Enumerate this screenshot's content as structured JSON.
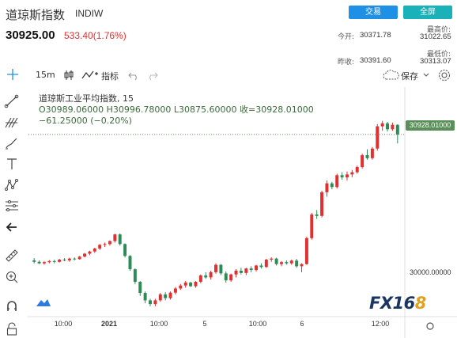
{
  "header": {
    "title": "道琼斯指数",
    "ticker": "INDIW",
    "price": "30925.00",
    "change": "533.40(1.76%)",
    "trade_button": "交易",
    "fullscreen_button": "全屏",
    "open_label": "今开:",
    "open_value": "30371.78",
    "prev_close_label": "昨收:",
    "prev_close_value": "30391.60",
    "high_label": "最高价:",
    "high_value": "31022.65",
    "low_label": "最低价:",
    "low_value": "30313.07"
  },
  "toolbar": {
    "interval": "15m",
    "indicators_label": "指标",
    "save_label": "保存"
  },
  "sidebar": {
    "icons": [
      "crosshair-icon",
      "trend-line-icon",
      "pitchfork-icon",
      "brush-icon",
      "text-icon",
      "pattern-icon",
      "forecast-icon",
      "back-arrow-icon",
      "ruler-icon",
      "zoom-in-icon",
      "magnet-icon",
      "lock-icon"
    ]
  },
  "legend": {
    "name": "道琼斯工业平均指数, 15",
    "ohlc": "O30989.06000  H30996.78000  L30875.60000  收=30928.01000",
    "delta": "−61.25000 (−0.20%)"
  },
  "chart_data": {
    "type": "candlestick",
    "up_color": "#e03030",
    "down_color": "#2e8b57",
    "last_price_tag": "30928.01000",
    "y_tick_labels": [
      "30000.00000"
    ],
    "x_tick_labels": [
      "10:00",
      "2021",
      "10:00",
      "5",
      "10:00",
      "6",
      "12:00"
    ],
    "y_range": [
      29700,
      31250
    ],
    "candles": [
      [
        30080,
        30095,
        30060,
        30070
      ],
      [
        30070,
        30080,
        30055,
        30060
      ],
      [
        30060,
        30075,
        30050,
        30068
      ],
      [
        30068,
        30082,
        30060,
        30075
      ],
      [
        30075,
        30085,
        30060,
        30070
      ],
      [
        30070,
        30090,
        30065,
        30085
      ],
      [
        30085,
        30095,
        30075,
        30080
      ],
      [
        30080,
        30098,
        30070,
        30092
      ],
      [
        30092,
        30100,
        30080,
        30088
      ],
      [
        30088,
        30110,
        30085,
        30105
      ],
      [
        30105,
        30130,
        30100,
        30125
      ],
      [
        30125,
        30145,
        30115,
        30140
      ],
      [
        30140,
        30165,
        30130,
        30160
      ],
      [
        30160,
        30190,
        30150,
        30185
      ],
      [
        30185,
        30200,
        30170,
        30190
      ],
      [
        30190,
        30215,
        30180,
        30210
      ],
      [
        30210,
        30260,
        30200,
        30255
      ],
      [
        30255,
        30262,
        30180,
        30190
      ],
      [
        30190,
        30195,
        30100,
        30110
      ],
      [
        30110,
        30115,
        30010,
        30020
      ],
      [
        30020,
        30025,
        29920,
        29935
      ],
      [
        29935,
        29940,
        29840,
        29860
      ],
      [
        29860,
        29870,
        29790,
        29810
      ],
      [
        29810,
        29820,
        29770,
        29785
      ],
      [
        29785,
        29820,
        29770,
        29810
      ],
      [
        29810,
        29860,
        29800,
        29850
      ],
      [
        29850,
        29865,
        29810,
        29825
      ],
      [
        29825,
        29870,
        29815,
        29862
      ],
      [
        29862,
        29900,
        29850,
        29890
      ],
      [
        29890,
        29920,
        29880,
        29910
      ],
      [
        29910,
        29940,
        29895,
        29930
      ],
      [
        29930,
        29935,
        29900,
        29905
      ],
      [
        29905,
        29940,
        29895,
        29935
      ],
      [
        29935,
        29985,
        29925,
        29978
      ],
      [
        29978,
        30000,
        29955,
        29965
      ],
      [
        29965,
        30010,
        29950,
        30000
      ],
      [
        30000,
        30060,
        29990,
        30050
      ],
      [
        30050,
        30055,
        29980,
        29992
      ],
      [
        29992,
        30005,
        29930,
        29945
      ],
      [
        29945,
        29990,
        29935,
        29985
      ],
      [
        29985,
        30020,
        29965,
        30010
      ],
      [
        30010,
        30030,
        29985,
        29995
      ],
      [
        29995,
        30030,
        29980,
        30025
      ],
      [
        30025,
        30040,
        30000,
        30015
      ],
      [
        30015,
        30050,
        30005,
        30045
      ],
      [
        30045,
        30060,
        30025,
        30035
      ],
      [
        30035,
        30090,
        30030,
        30085
      ],
      [
        30085,
        30100,
        30070,
        30092
      ],
      [
        30092,
        30098,
        30045,
        30055
      ],
      [
        30055,
        30075,
        30040,
        30068
      ],
      [
        30068,
        30080,
        30050,
        30060
      ],
      [
        30060,
        30085,
        30050,
        30078
      ],
      [
        30078,
        30090,
        30030,
        30040
      ],
      [
        30040,
        30060,
        30000,
        30055
      ],
      [
        30055,
        30240,
        30050,
        30230
      ],
      [
        30230,
        30400,
        30220,
        30390
      ],
      [
        30390,
        30420,
        30360,
        30380
      ],
      [
        30380,
        30550,
        30370,
        30540
      ],
      [
        30540,
        30620,
        30510,
        30600
      ],
      [
        30600,
        30610,
        30560,
        30575
      ],
      [
        30575,
        30665,
        30565,
        30655
      ],
      [
        30655,
        30675,
        30625,
        30640
      ],
      [
        30640,
        30680,
        30620,
        30660
      ],
      [
        30660,
        30690,
        30640,
        30675
      ],
      [
        30675,
        30720,
        30665,
        30710
      ],
      [
        30710,
        30800,
        30700,
        30790
      ],
      [
        30790,
        30830,
        30760,
        30770
      ],
      [
        30770,
        30845,
        30760,
        30835
      ],
      [
        30835,
        31000,
        30820,
        30985
      ],
      [
        30985,
        31022,
        30955,
        31005
      ],
      [
        31005,
        31015,
        30950,
        30965
      ],
      [
        30965,
        31010,
        30955,
        30995
      ],
      [
        30995,
        31000,
        30870,
        30930
      ]
    ]
  }
}
